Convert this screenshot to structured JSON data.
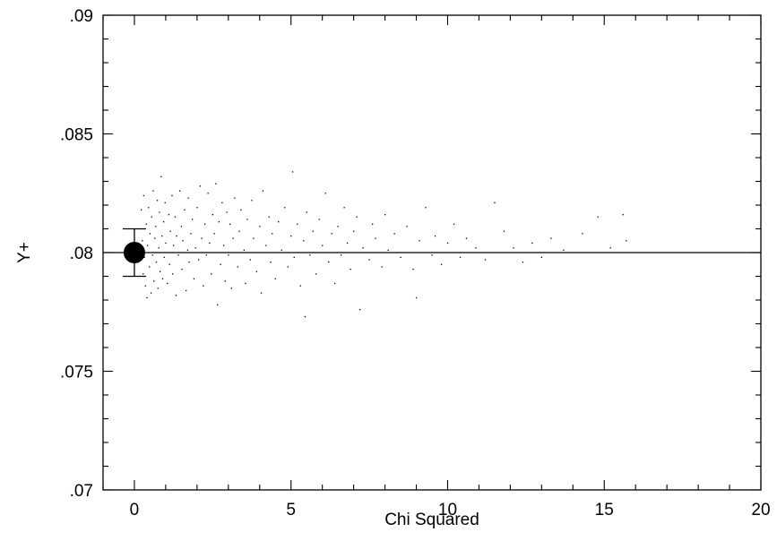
{
  "chart_data": {
    "type": "scatter",
    "title": "",
    "xlabel": "Chi Squared",
    "ylabel": "Y+",
    "xlim": [
      -1,
      20
    ],
    "ylim": [
      0.07,
      0.09
    ],
    "x_ticks": [
      {
        "value": 0,
        "label": "0"
      },
      {
        "value": 5,
        "label": "5"
      },
      {
        "value": 10,
        "label": "10"
      },
      {
        "value": 15,
        "label": "15"
      },
      {
        "value": 20,
        "label": "20"
      }
    ],
    "x_minor_step": 1,
    "y_ticks": [
      {
        "value": 0.07,
        "label": ".07"
      },
      {
        "value": 0.075,
        "label": ".075"
      },
      {
        "value": 0.08,
        "label": ".08"
      },
      {
        "value": 0.085,
        "label": ".085"
      },
      {
        "value": 0.09,
        "label": ".09"
      }
    ],
    "y_minor_step": 0.001,
    "grid": false,
    "reference_line": {
      "y": 0.08
    },
    "highlight_point": {
      "x": 0,
      "y": 0.08,
      "yerr": 0.001
    },
    "scatter_points": [
      [
        0.22,
        0.0818
      ],
      [
        0.25,
        0.0805
      ],
      [
        0.28,
        0.0791
      ],
      [
        0.3,
        0.0824
      ],
      [
        0.32,
        0.0798
      ],
      [
        0.35,
        0.0786
      ],
      [
        0.38,
        0.0812
      ],
      [
        0.4,
        0.0781
      ],
      [
        0.42,
        0.0803
      ],
      [
        0.45,
        0.0819
      ],
      [
        0.48,
        0.0794
      ],
      [
        0.5,
        0.0808
      ],
      [
        0.53,
        0.0783
      ],
      [
        0.55,
        0.0815
      ],
      [
        0.58,
        0.0799
      ],
      [
        0.6,
        0.0826
      ],
      [
        0.62,
        0.0788
      ],
      [
        0.65,
        0.0806
      ],
      [
        0.68,
        0.0811
      ],
      [
        0.7,
        0.0796
      ],
      [
        0.73,
        0.0822
      ],
      [
        0.75,
        0.0785
      ],
      [
        0.78,
        0.0802
      ],
      [
        0.8,
        0.0817
      ],
      [
        0.82,
        0.0792
      ],
      [
        0.85,
        0.0832
      ],
      [
        0.88,
        0.0807
      ],
      [
        0.9,
        0.0789
      ],
      [
        0.93,
        0.0813
      ],
      [
        0.95,
        0.0798
      ],
      [
        0.98,
        0.0821
      ],
      [
        1.0,
        0.0804
      ],
      [
        1.05,
        0.0787
      ],
      [
        1.1,
        0.0816
      ],
      [
        1.12,
        0.0795
      ],
      [
        1.15,
        0.0809
      ],
      [
        1.2,
        0.0824
      ],
      [
        1.22,
        0.0791
      ],
      [
        1.25,
        0.0803
      ],
      [
        1.3,
        0.0815
      ],
      [
        1.33,
        0.0782
      ],
      [
        1.35,
        0.0807
      ],
      [
        1.4,
        0.0799
      ],
      [
        1.45,
        0.0826
      ],
      [
        1.5,
        0.0811
      ],
      [
        1.52,
        0.0793
      ],
      [
        1.55,
        0.0805
      ],
      [
        1.6,
        0.0818
      ],
      [
        1.65,
        0.0784
      ],
      [
        1.7,
        0.0801
      ],
      [
        1.72,
        0.0823
      ],
      [
        1.75,
        0.0796
      ],
      [
        1.8,
        0.0808
      ],
      [
        1.85,
        0.0814
      ],
      [
        1.9,
        0.0789
      ],
      [
        1.95,
        0.0802
      ],
      [
        2.0,
        0.0819
      ],
      [
        2.05,
        0.0797
      ],
      [
        2.1,
        0.0828
      ],
      [
        2.15,
        0.0806
      ],
      [
        2.2,
        0.0786
      ],
      [
        2.25,
        0.0812
      ],
      [
        2.3,
        0.0799
      ],
      [
        2.35,
        0.0825
      ],
      [
        2.4,
        0.0804
      ],
      [
        2.45,
        0.0791
      ],
      [
        2.5,
        0.0816
      ],
      [
        2.55,
        0.0808
      ],
      [
        2.6,
        0.0829
      ],
      [
        2.65,
        0.0778
      ],
      [
        2.7,
        0.0813
      ],
      [
        2.75,
        0.0795
      ],
      [
        2.8,
        0.0821
      ],
      [
        2.85,
        0.0803
      ],
      [
        2.9,
        0.0788
      ],
      [
        2.95,
        0.0817
      ],
      [
        3.0,
        0.0799
      ],
      [
        3.05,
        0.0812
      ],
      [
        3.1,
        0.0785
      ],
      [
        3.15,
        0.0806
      ],
      [
        3.2,
        0.0823
      ],
      [
        3.3,
        0.0794
      ],
      [
        3.35,
        0.0809
      ],
      [
        3.4,
        0.0818
      ],
      [
        3.5,
        0.0801
      ],
      [
        3.55,
        0.0787
      ],
      [
        3.6,
        0.0814
      ],
      [
        3.7,
        0.0797
      ],
      [
        3.75,
        0.0822
      ],
      [
        3.8,
        0.0806
      ],
      [
        3.9,
        0.0792
      ],
      [
        4.0,
        0.0811
      ],
      [
        4.05,
        0.0783
      ],
      [
        4.1,
        0.0826
      ],
      [
        4.2,
        0.0803
      ],
      [
        4.3,
        0.0815
      ],
      [
        4.35,
        0.0796
      ],
      [
        4.4,
        0.0808
      ],
      [
        4.5,
        0.0789
      ],
      [
        4.6,
        0.0813
      ],
      [
        4.7,
        0.0801
      ],
      [
        4.8,
        0.0819
      ],
      [
        4.9,
        0.0794
      ],
      [
        5.0,
        0.0807
      ],
      [
        5.05,
        0.0834
      ],
      [
        5.1,
        0.0798
      ],
      [
        5.2,
        0.0812
      ],
      [
        5.3,
        0.0786
      ],
      [
        5.4,
        0.0805
      ],
      [
        5.45,
        0.0773
      ],
      [
        5.5,
        0.0817
      ],
      [
        5.6,
        0.0799
      ],
      [
        5.7,
        0.0809
      ],
      [
        5.8,
        0.0791
      ],
      [
        5.9,
        0.0814
      ],
      [
        6.0,
        0.0803
      ],
      [
        6.1,
        0.0825
      ],
      [
        6.2,
        0.0796
      ],
      [
        6.3,
        0.0808
      ],
      [
        6.4,
        0.0787
      ],
      [
        6.5,
        0.0811
      ],
      [
        6.6,
        0.0799
      ],
      [
        6.7,
        0.0819
      ],
      [
        6.8,
        0.0804
      ],
      [
        6.9,
        0.0793
      ],
      [
        7.0,
        0.0809
      ],
      [
        7.1,
        0.0815
      ],
      [
        7.2,
        0.0776
      ],
      [
        7.3,
        0.0802
      ],
      [
        7.5,
        0.0797
      ],
      [
        7.6,
        0.0812
      ],
      [
        7.7,
        0.0806
      ],
      [
        7.9,
        0.0794
      ],
      [
        8.0,
        0.0816
      ],
      [
        8.1,
        0.0801
      ],
      [
        8.3,
        0.0808
      ],
      [
        8.5,
        0.0798
      ],
      [
        8.7,
        0.0811
      ],
      [
        8.9,
        0.0793
      ],
      [
        9.0,
        0.0781
      ],
      [
        9.1,
        0.0805
      ],
      [
        9.3,
        0.0819
      ],
      [
        9.5,
        0.0799
      ],
      [
        9.6,
        0.0807
      ],
      [
        9.8,
        0.0795
      ],
      [
        10.0,
        0.0804
      ],
      [
        10.2,
        0.0812
      ],
      [
        10.4,
        0.0798
      ],
      [
        10.6,
        0.0806
      ],
      [
        10.9,
        0.0802
      ],
      [
        11.2,
        0.0797
      ],
      [
        11.5,
        0.0821
      ],
      [
        11.8,
        0.0809
      ],
      [
        12.1,
        0.0802
      ],
      [
        12.4,
        0.0796
      ],
      [
        12.7,
        0.0804
      ],
      [
        13.0,
        0.0798
      ],
      [
        13.3,
        0.0806
      ],
      [
        13.7,
        0.0801
      ],
      [
        14.3,
        0.0808
      ],
      [
        14.8,
        0.0815
      ],
      [
        15.2,
        0.0802
      ],
      [
        15.6,
        0.0816
      ],
      [
        15.7,
        0.0805
      ]
    ]
  }
}
